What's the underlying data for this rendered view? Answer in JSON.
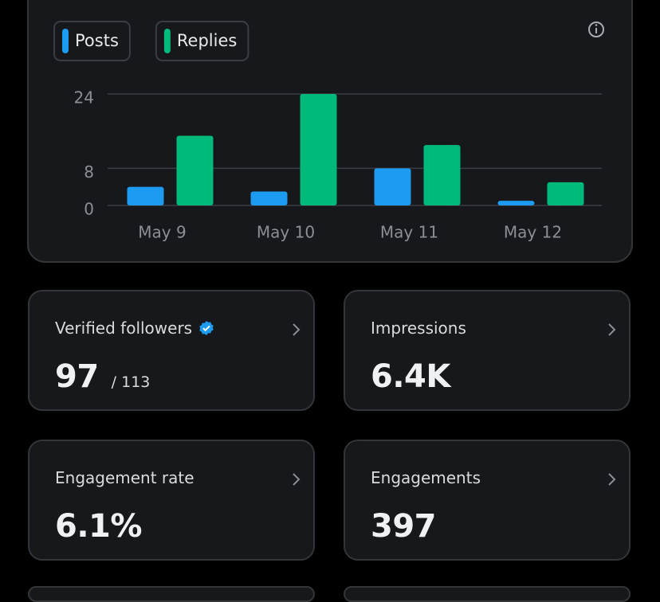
{
  "chart_data": {
    "type": "bar",
    "categories": [
      "May 9",
      "May 10",
      "May 11",
      "May 12"
    ],
    "series": [
      {
        "name": "Posts",
        "color": "#1d9bf0",
        "values": [
          4,
          3,
          8,
          1
        ]
      },
      {
        "name": "Replies",
        "color": "#00ba7c",
        "values": [
          15,
          24,
          13,
          5
        ]
      }
    ],
    "ylim": [
      0,
      24
    ],
    "yticks": [
      0,
      8,
      24
    ],
    "grid": true
  },
  "cards": [
    {
      "label": "Verified followers",
      "value": "97",
      "total": "/ 113"
    },
    {
      "label": "Impressions",
      "value": "6.4K"
    },
    {
      "label": "Engagement rate",
      "value": "6.1%"
    },
    {
      "label": "Engagements",
      "value": "397"
    }
  ]
}
